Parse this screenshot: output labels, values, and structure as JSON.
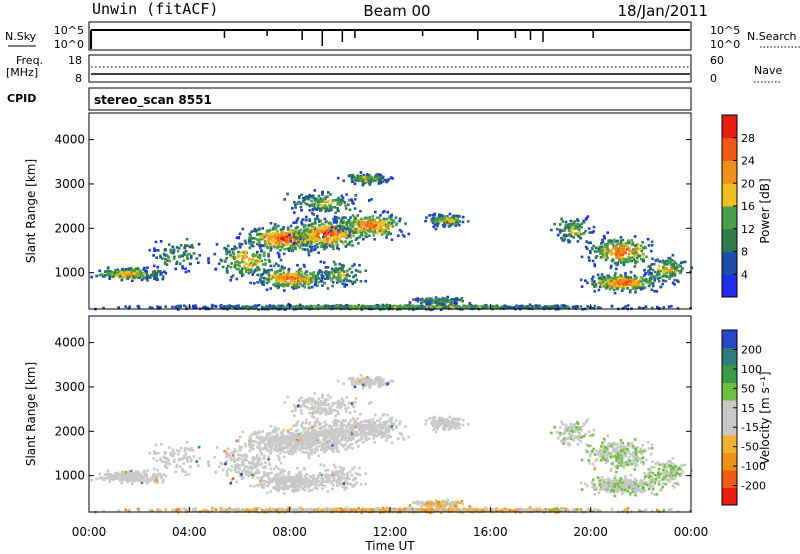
{
  "header": {
    "station": "Unwin (fitACF)",
    "beam": "Beam 00",
    "date": "18/Jan/2011"
  },
  "nsky_panel": {
    "left_label": "N.Sky",
    "right_label": "N.Search",
    "ticks_left": [
      "10^5",
      "10^0"
    ],
    "ticks_right": [
      "10^5",
      "10^0"
    ]
  },
  "freq_panel": {
    "left_label_1": "Freq.",
    "left_label_2": "[MHz]",
    "right_label": "Nave",
    "ticks_left": [
      "18",
      "8"
    ],
    "ticks_right": [
      "60",
      "0"
    ]
  },
  "cpid_panel": {
    "left_label": "CPID",
    "program": "stereo_scan 8551"
  },
  "colors": {
    "power_scale": [
      "#1e2de6",
      "#1e4fa8",
      "#2f7b4c",
      "#4aa04a",
      "#f0c020",
      "#f09018",
      "#ee5a14",
      "#e81e14"
    ],
    "velocity_scale": [
      "#e81e14",
      "#ee5a14",
      "#f09018",
      "#f0b030",
      "#c8c8c8",
      "#c8c8c8",
      "#70c040",
      "#3a9a48",
      "#2f7b7b",
      "#2848c8"
    ]
  },
  "chart_data": [
    {
      "type": "heatmap",
      "name": "power",
      "ylabel": "Slant Range [km]",
      "yticks": [
        1000,
        2000,
        3000,
        4000
      ],
      "ylim": [
        180,
        4600
      ],
      "xlim": [
        0,
        24
      ],
      "colorbar_label": "Power [dB]",
      "colorbar_ticks": [
        4,
        8,
        12,
        16,
        20,
        24,
        28
      ],
      "colorbar_range": [
        0,
        32
      ],
      "grid": false
    },
    {
      "type": "heatmap",
      "name": "velocity",
      "ylabel": "Slant Range [km]",
      "yticks": [
        1000,
        2000,
        3000,
        4000
      ],
      "ylim": [
        180,
        4600
      ],
      "xlim": [
        0,
        24
      ],
      "xticks": [
        "00:00",
        "04:00",
        "08:00",
        "12:00",
        "16:00",
        "20:00",
        "00:00"
      ],
      "xlabel": "Time UT",
      "colorbar_label": "Velocity [m s⁻¹]",
      "colorbar_ticks": [
        "-200",
        "-100",
        "-50",
        "-15",
        "15",
        "50",
        "100",
        "200"
      ],
      "grid": false
    }
  ]
}
